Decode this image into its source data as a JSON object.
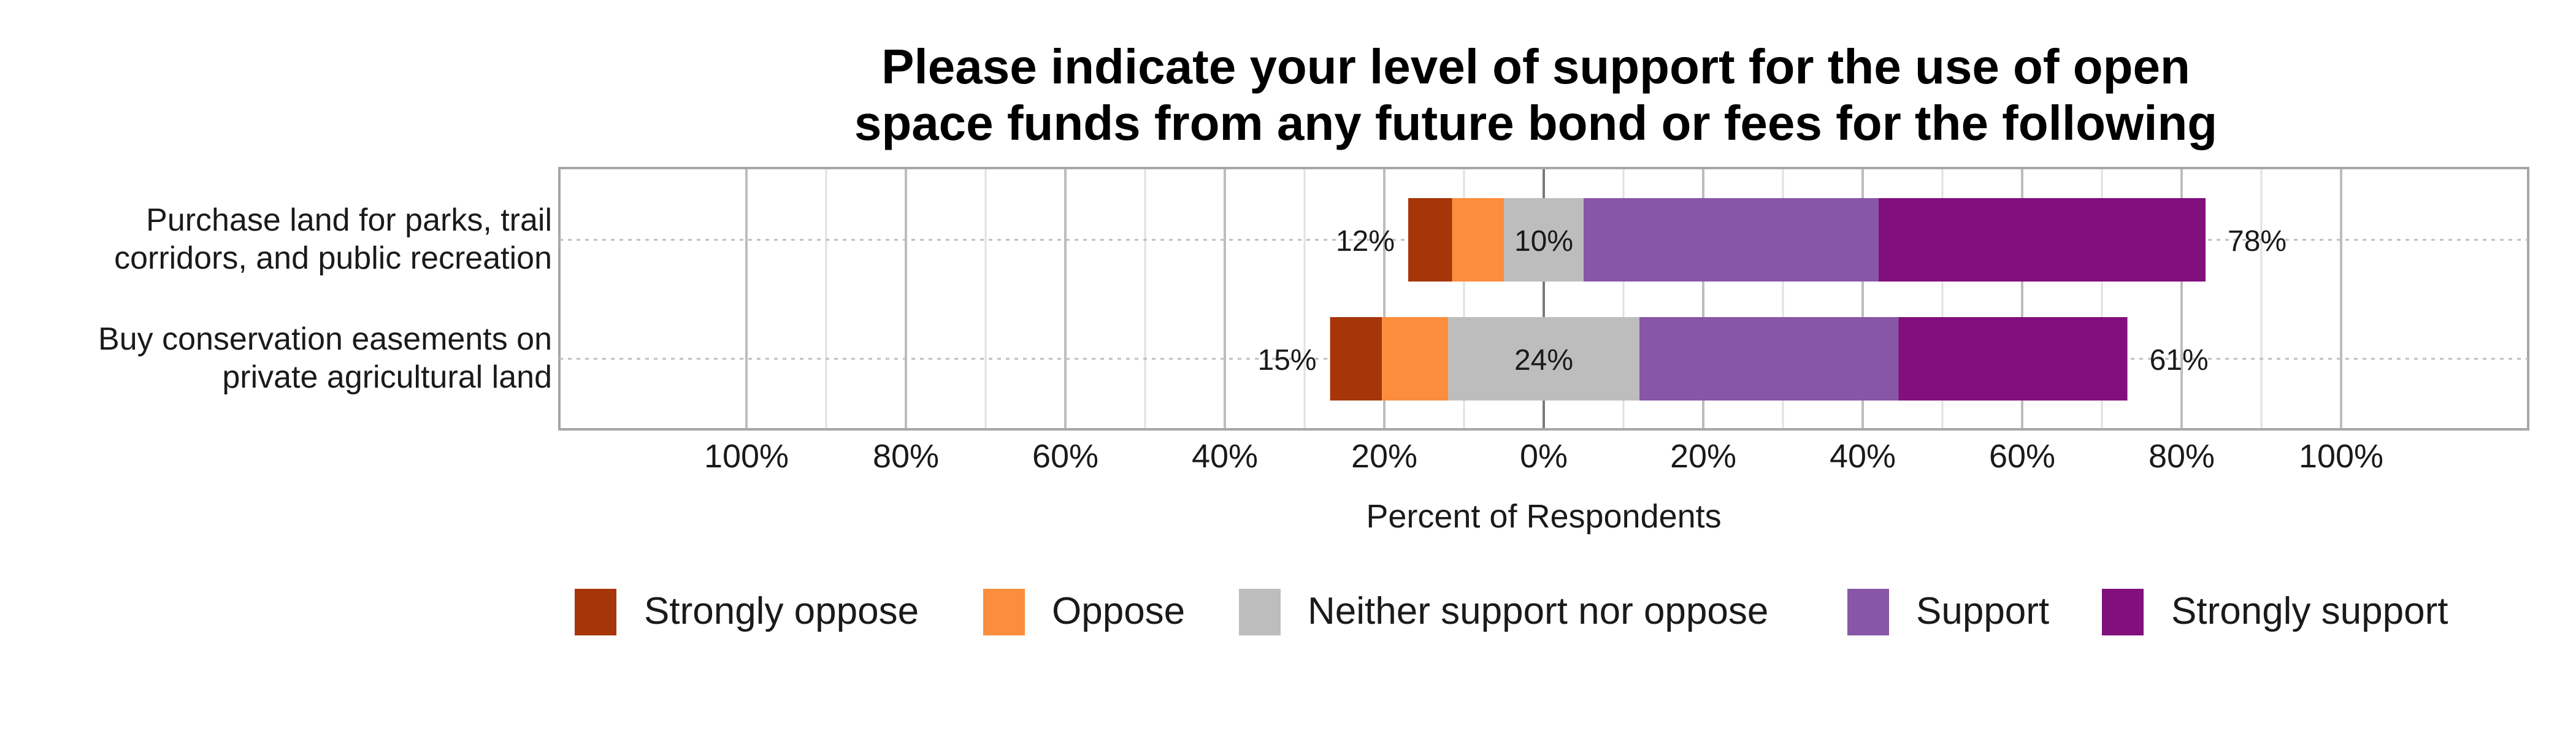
{
  "chart_data": {
    "type": "bar",
    "orientation": "horizontal-diverging-stacked",
    "title_lines": [
      "Please indicate your level of support for the use of open",
      "space funds from any future bond or fees for the following"
    ],
    "xlabel": "Percent of Respondents",
    "xlim": [
      -100,
      100
    ],
    "tick_values": [
      -100,
      -80,
      -60,
      -40,
      -20,
      0,
      20,
      40,
      60,
      80,
      100
    ],
    "tick_labels": [
      "100%",
      "80%",
      "60%",
      "40%",
      "20%",
      "0%",
      "20%",
      "40%",
      "60%",
      "80%",
      "100%"
    ],
    "grid": true,
    "legend_position": "bottom",
    "legend": [
      {
        "name": "Strongly oppose",
        "color": "#A6360A"
      },
      {
        "name": "Oppose",
        "color": "#FB8D3D"
      },
      {
        "name": "Neither support nor oppose",
        "color": "#BDBDBD"
      },
      {
        "name": "Support",
        "color": "#8856A7"
      },
      {
        "name": "Strongly support",
        "color": "#810F7C"
      }
    ],
    "categories": [
      {
        "label_lines": [
          "Purchase land for parks, trail",
          "corridors, and public recreation"
        ],
        "values": [
          5.5,
          6.5,
          10,
          37,
          41
        ],
        "oppose_label": "12%",
        "neutral_label": "10%",
        "support_label": "78%"
      },
      {
        "label_lines": [
          "Buy conservation easements on",
          "private agricultural land"
        ],
        "values": [
          6.5,
          8.3,
          24,
          32.5,
          28.7
        ],
        "oppose_label": "15%",
        "neutral_label": "24%",
        "support_label": "61%"
      }
    ]
  }
}
